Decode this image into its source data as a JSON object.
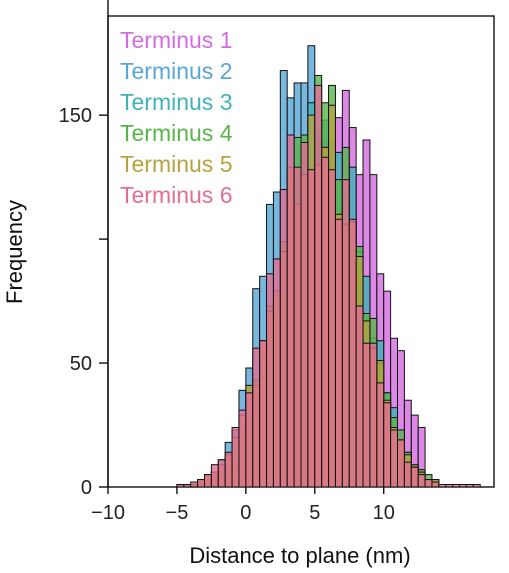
{
  "chart_data": {
    "type": "histogram",
    "title": "",
    "xlabel": "Distance to plane (nm)",
    "ylabel": "Frequency",
    "xlim": [
      -10,
      18
    ],
    "ylim": [
      0,
      190
    ],
    "x_ticks": [
      -10,
      -5,
      0,
      5,
      10
    ],
    "x_tick_labels": [
      "−10",
      "−5",
      "0",
      "5",
      "10"
    ],
    "y_ticks": [
      0,
      50,
      100,
      150
    ],
    "y_tick_labels": [
      "0",
      "50",
      "",
      "150"
    ],
    "bin_width": 0.5,
    "legend_position": "top-left",
    "series": [
      {
        "name": "Terminus 1",
        "color": "#d36ce0",
        "mean": 7.2,
        "sd": 2.8,
        "peak": 152,
        "range": [
          -2,
          13
        ],
        "seed": 11
      },
      {
        "name": "Terminus 2",
        "color": "#58a6d6",
        "mean": 4.0,
        "sd": 2.4,
        "peak": 178,
        "range": [
          -4,
          13
        ],
        "seed": 23
      },
      {
        "name": "Terminus 3",
        "color": "#3fb3b8",
        "mean": 5.8,
        "sd": 2.7,
        "peak": 150,
        "range": [
          -4,
          13
        ],
        "seed": 37
      },
      {
        "name": "Terminus 4",
        "color": "#58b54a",
        "mean": 5.5,
        "sd": 2.9,
        "peak": 150,
        "range": [
          -5,
          14
        ],
        "seed": 41
      },
      {
        "name": "Terminus 5",
        "color": "#b7a23e",
        "mean": 5.2,
        "sd": 3.0,
        "peak": 145,
        "range": [
          -5,
          14
        ],
        "seed": 53
      },
      {
        "name": "Terminus 6",
        "color": "#e26e92",
        "mean": 5.0,
        "sd": 3.0,
        "peak": 148,
        "range": [
          -5,
          17
        ],
        "seed": 67
      }
    ]
  }
}
